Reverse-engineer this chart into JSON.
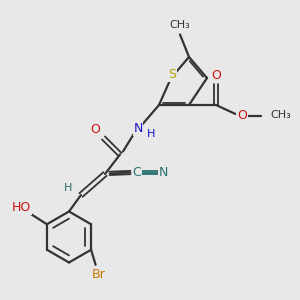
{
  "bg_color": "#e8e8e8",
  "bond_color": "#333333",
  "S_color": "#b8a000",
  "N_color": "#1515cc",
  "O_color": "#cc1515",
  "Br_color": "#cc7700",
  "teal_color": "#2a7070",
  "figsize": [
    3.0,
    3.0
  ],
  "dpi": 100,
  "xlim": [
    0,
    10
  ],
  "ylim": [
    0,
    10
  ]
}
